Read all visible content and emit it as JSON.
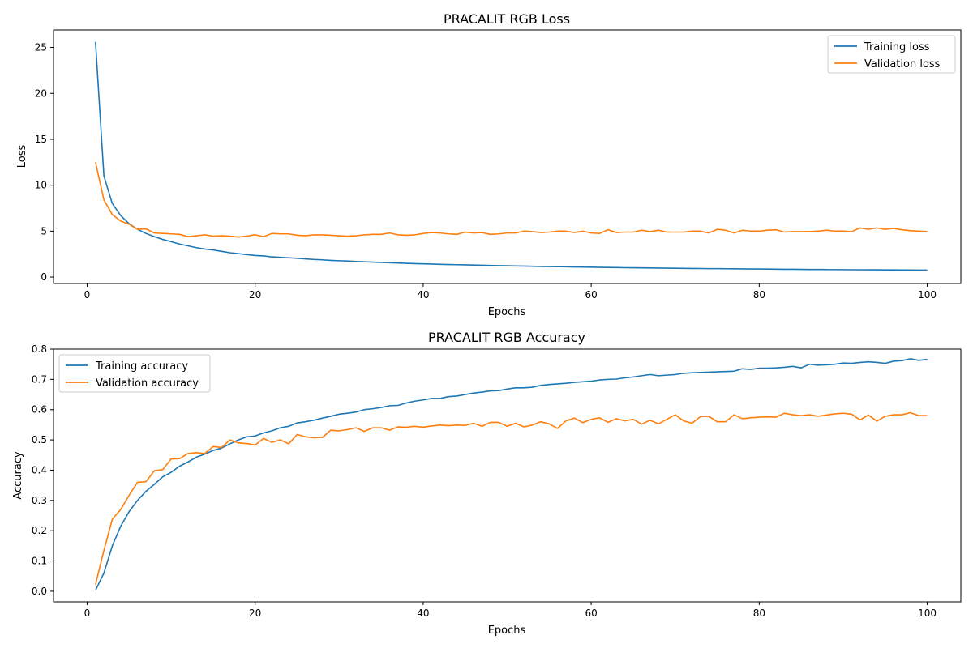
{
  "chart_data": [
    {
      "type": "line",
      "title": "PRACALIT RGB Loss",
      "xlabel": "Epochs",
      "ylabel": "Loss",
      "xlim": [
        -4,
        104
      ],
      "ylim": [
        -0.7,
        26.9
      ],
      "xticks": [
        0,
        20,
        40,
        60,
        80,
        100
      ],
      "yticks": [
        0,
        5,
        10,
        15,
        20,
        25
      ],
      "legend_position": "top-right",
      "grid": false,
      "x_start": 1,
      "series": [
        {
          "name": "Training loss",
          "color": "#1f77b4",
          "values": [
            25.6,
            11.0,
            8.0,
            6.7,
            5.8,
            5.2,
            4.75,
            4.4,
            4.1,
            3.85,
            3.6,
            3.4,
            3.2,
            3.05,
            2.95,
            2.8,
            2.65,
            2.55,
            2.45,
            2.35,
            2.3,
            2.2,
            2.15,
            2.1,
            2.05,
            1.98,
            1.92,
            1.88,
            1.82,
            1.78,
            1.75,
            1.7,
            1.67,
            1.63,
            1.6,
            1.56,
            1.53,
            1.5,
            1.47,
            1.44,
            1.42,
            1.39,
            1.37,
            1.35,
            1.33,
            1.31,
            1.29,
            1.27,
            1.25,
            1.23,
            1.21,
            1.2,
            1.18,
            1.16,
            1.15,
            1.13,
            1.12,
            1.1,
            1.09,
            1.08,
            1.06,
            1.05,
            1.04,
            1.02,
            1.01,
            1.0,
            0.99,
            0.98,
            0.97,
            0.96,
            0.95,
            0.94,
            0.93,
            0.92,
            0.92,
            0.91,
            0.9,
            0.89,
            0.88,
            0.88,
            0.87,
            0.86,
            0.85,
            0.85,
            0.84,
            0.83,
            0.83,
            0.82,
            0.81,
            0.81,
            0.8,
            0.8,
            0.79,
            0.79,
            0.78,
            0.78,
            0.77,
            0.77,
            0.76,
            0.76
          ]
        },
        {
          "name": "Validation loss",
          "color": "#ff7f0e",
          "values": [
            12.5,
            8.4,
            6.8,
            6.1,
            5.75,
            5.2,
            5.25,
            4.8,
            4.75,
            4.7,
            4.65,
            4.4,
            4.5,
            4.6,
            4.45,
            4.5,
            4.45,
            4.35,
            4.45,
            4.6,
            4.4,
            4.75,
            4.7,
            4.7,
            4.55,
            4.5,
            4.6,
            4.6,
            4.55,
            4.5,
            4.45,
            4.5,
            4.6,
            4.65,
            4.65,
            4.8,
            4.6,
            4.55,
            4.6,
            4.75,
            4.85,
            4.8,
            4.7,
            4.65,
            4.9,
            4.8,
            4.85,
            4.65,
            4.7,
            4.8,
            4.8,
            5.0,
            4.95,
            4.85,
            4.9,
            5.0,
            5.0,
            4.85,
            5.0,
            4.8,
            4.75,
            5.15,
            4.85,
            4.9,
            4.9,
            5.1,
            4.95,
            5.1,
            4.9,
            4.9,
            4.9,
            5.0,
            5.0,
            4.8,
            5.2,
            5.1,
            4.8,
            5.1,
            5.0,
            5.0,
            5.1,
            5.15,
            4.9,
            4.95,
            4.95,
            4.95,
            5.0,
            5.1,
            5.0,
            5.0,
            4.95,
            5.35,
            5.2,
            5.35,
            5.2,
            5.3,
            5.15,
            5.05,
            5.0,
            4.95
          ]
        }
      ]
    },
    {
      "type": "line",
      "title": "PRACALIT RGB Accuracy",
      "xlabel": "Epochs",
      "ylabel": "Accuracy",
      "xlim": [
        -4,
        104
      ],
      "ylim": [
        -0.035,
        0.8
      ],
      "xticks": [
        0,
        20,
        40,
        60,
        80,
        100
      ],
      "yticks": [
        0.0,
        0.1,
        0.2,
        0.3,
        0.4,
        0.5,
        0.6,
        0.7,
        0.8
      ],
      "legend_position": "top-left",
      "grid": false,
      "x_start": 1,
      "series": [
        {
          "name": "Training accuracy",
          "color": "#1f77b4",
          "values": [
            0.003,
            0.06,
            0.15,
            0.215,
            0.263,
            0.3,
            0.33,
            0.353,
            0.378,
            0.393,
            0.413,
            0.427,
            0.443,
            0.453,
            0.465,
            0.473,
            0.487,
            0.5,
            0.51,
            0.513,
            0.523,
            0.53,
            0.54,
            0.545,
            0.556,
            0.56,
            0.565,
            0.572,
            0.578,
            0.585,
            0.588,
            0.592,
            0.6,
            0.603,
            0.607,
            0.613,
            0.614,
            0.622,
            0.628,
            0.632,
            0.637,
            0.637,
            0.643,
            0.645,
            0.65,
            0.655,
            0.658,
            0.662,
            0.663,
            0.668,
            0.672,
            0.672,
            0.674,
            0.68,
            0.683,
            0.685,
            0.687,
            0.69,
            0.692,
            0.694,
            0.698,
            0.7,
            0.701,
            0.705,
            0.708,
            0.712,
            0.716,
            0.712,
            0.714,
            0.716,
            0.72,
            0.722,
            0.723,
            0.724,
            0.725,
            0.726,
            0.727,
            0.735,
            0.733,
            0.737,
            0.737,
            0.738,
            0.74,
            0.743,
            0.738,
            0.75,
            0.747,
            0.748,
            0.75,
            0.754,
            0.753,
            0.756,
            0.758,
            0.756,
            0.753,
            0.76,
            0.762,
            0.768,
            0.763,
            0.766
          ]
        },
        {
          "name": "Validation accuracy",
          "color": "#ff7f0e",
          "values": [
            0.022,
            0.135,
            0.238,
            0.27,
            0.317,
            0.36,
            0.362,
            0.398,
            0.402,
            0.437,
            0.438,
            0.455,
            0.458,
            0.455,
            0.478,
            0.475,
            0.5,
            0.49,
            0.488,
            0.483,
            0.505,
            0.492,
            0.5,
            0.487,
            0.518,
            0.51,
            0.507,
            0.508,
            0.532,
            0.53,
            0.534,
            0.54,
            0.528,
            0.54,
            0.54,
            0.532,
            0.543,
            0.542,
            0.545,
            0.542,
            0.546,
            0.549,
            0.547,
            0.549,
            0.548,
            0.555,
            0.545,
            0.558,
            0.558,
            0.545,
            0.555,
            0.543,
            0.549,
            0.56,
            0.553,
            0.538,
            0.563,
            0.572,
            0.557,
            0.568,
            0.573,
            0.558,
            0.57,
            0.563,
            0.568,
            0.552,
            0.565,
            0.553,
            0.568,
            0.583,
            0.563,
            0.555,
            0.577,
            0.578,
            0.56,
            0.56,
            0.583,
            0.57,
            0.573,
            0.575,
            0.576,
            0.575,
            0.588,
            0.583,
            0.58,
            0.583,
            0.578,
            0.582,
            0.586,
            0.588,
            0.585,
            0.566,
            0.582,
            0.562,
            0.578,
            0.583,
            0.583,
            0.59,
            0.58,
            0.58
          ]
        }
      ]
    }
  ]
}
